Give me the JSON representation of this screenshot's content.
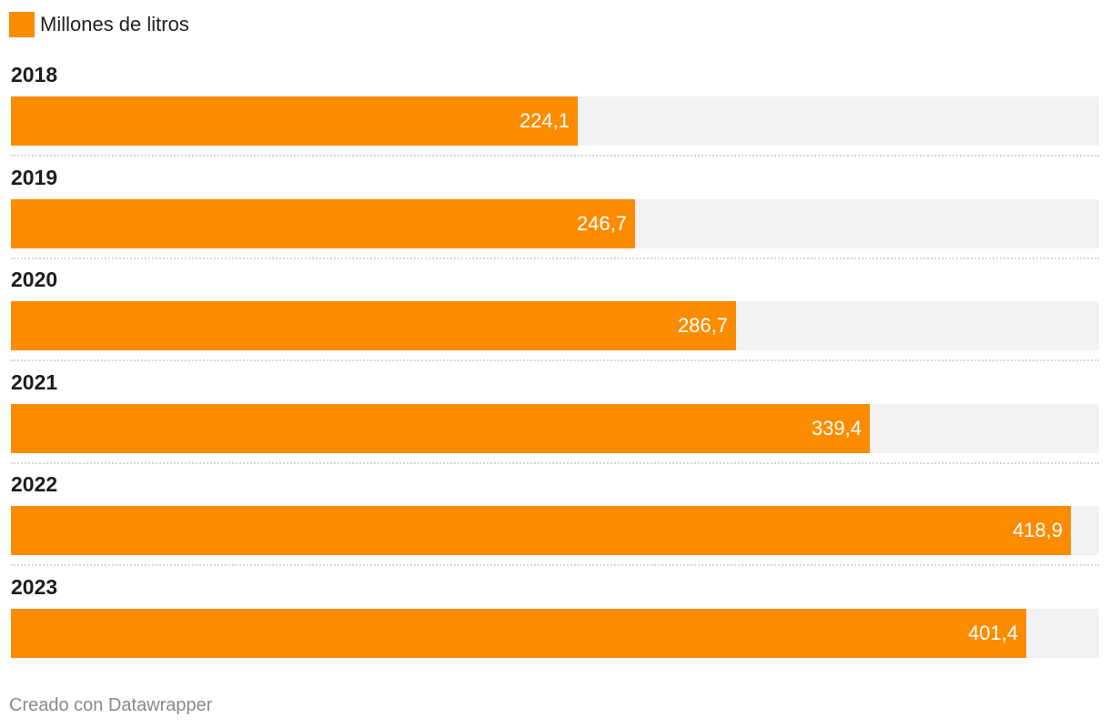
{
  "legend": {
    "label": "Millones de litros",
    "color": "#fb8c00"
  },
  "chart_data": {
    "type": "bar",
    "orientation": "horizontal",
    "categories": [
      "2018",
      "2019",
      "2020",
      "2021",
      "2022",
      "2023"
    ],
    "series": [
      {
        "name": "Millones de litros",
        "values": [
          224.1,
          246.7,
          286.7,
          339.4,
          418.9,
          401.4
        ],
        "labels": [
          "224,1",
          "246,7",
          "286,7",
          "339,4",
          "418,9",
          "401,4"
        ]
      }
    ],
    "xlim": [
      0,
      430
    ],
    "colors": {
      "bar": "#fb8c00",
      "track": "#f2f2f2",
      "value_text": "#ffffff"
    },
    "legend_position": "top-left"
  },
  "footer": {
    "credit": "Creado con Datawrapper"
  }
}
